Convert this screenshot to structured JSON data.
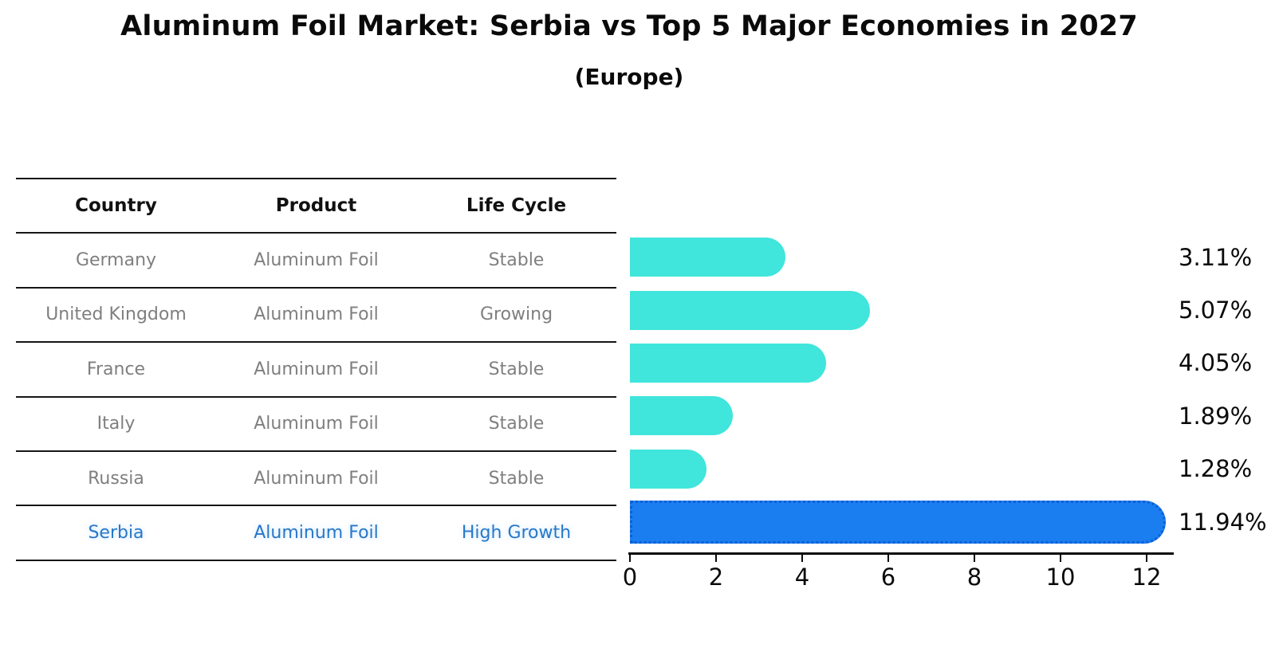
{
  "title": "Aluminum Foil Market: Serbia vs Top 5 Major Economies in 2027",
  "subtitle": "(Europe)",
  "table": {
    "headers": [
      "Country",
      "Product",
      "Life Cycle"
    ],
    "rows": [
      [
        "Germany",
        "Aluminum Foil",
        "Stable"
      ],
      [
        "United Kingdom",
        "Aluminum Foil",
        "Growing"
      ],
      [
        "France",
        "Aluminum Foil",
        "Stable"
      ],
      [
        "Italy",
        "Aluminum Foil",
        "Stable"
      ],
      [
        "Russia",
        "Aluminum Foil",
        "Stable"
      ],
      [
        "Serbia",
        "Aluminum Foil",
        "High Growth"
      ]
    ],
    "highlight_row": 5
  },
  "chart_data": {
    "type": "bar",
    "orientation": "horizontal",
    "title": "Aluminum Foil Market: Serbia vs Top 5 Major Economies in 2027 (Europe)",
    "categories": [
      "Germany",
      "United Kingdom",
      "France",
      "Italy",
      "Russia",
      "Serbia"
    ],
    "values": [
      3.11,
      5.07,
      4.05,
      1.89,
      1.28,
      11.94
    ],
    "value_labels": [
      "3.11%",
      "5.07%",
      "4.05%",
      "1.89%",
      "1.28%",
      "11.94%"
    ],
    "x_ticks": [
      "0",
      "2",
      "4",
      "6",
      "8",
      "10",
      "12"
    ],
    "x_tick_values": [
      0,
      2,
      4,
      6,
      8,
      10,
      12
    ],
    "xlim": [
      0,
      12.6
    ],
    "grid": false,
    "legend": false,
    "highlight_index": 5
  },
  "colors": {
    "bar": "#40e5dc",
    "highlight_bar": "#1b7ef0",
    "highlight_border": "#0d5fd6",
    "highlight_text": "#2878c8",
    "row_text": "#7f7f7f",
    "header_text": "#111111",
    "axis": "#0a0a0a"
  }
}
